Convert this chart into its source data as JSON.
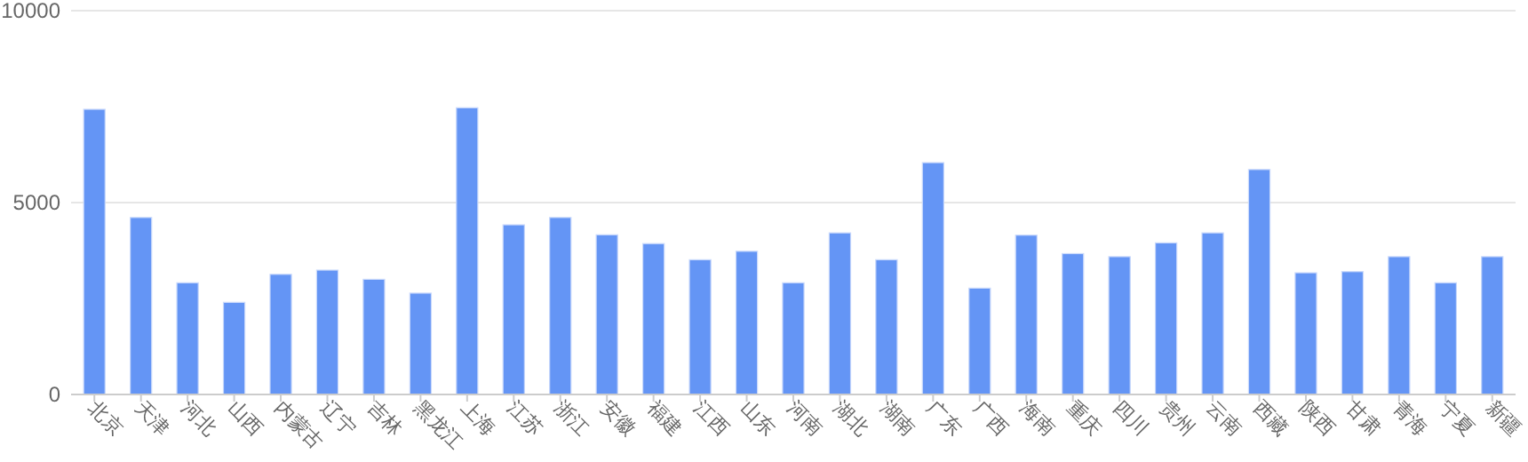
{
  "chart_data": {
    "type": "bar",
    "categories": [
      "北京",
      "天津",
      "河北",
      "山西",
      "内蒙古",
      "辽宁",
      "吉林",
      "黑龙江",
      "上海",
      "江苏",
      "浙江",
      "安徽",
      "福建",
      "江西",
      "山东",
      "河南",
      "湖北",
      "湖南",
      "广东",
      "广西",
      "海南",
      "重庆",
      "四川",
      "贵州",
      "云南",
      "西藏",
      "陕西",
      "甘肃",
      "青海",
      "宁夏",
      "新疆"
    ],
    "values": [
      7430,
      4610,
      2910,
      2400,
      3130,
      3240,
      3000,
      2640,
      7470,
      4420,
      4610,
      4160,
      3930,
      3510,
      3730,
      2910,
      4210,
      3510,
      6040,
      2770,
      4150,
      3670,
      3590,
      3950,
      4210,
      5860,
      3170,
      3200,
      3590,
      2910,
      3590
    ],
    "color": "#6495f5",
    "ylim": [
      0,
      10000
    ],
    "yticks": [
      0,
      5000,
      10000
    ],
    "grid": "y"
  }
}
